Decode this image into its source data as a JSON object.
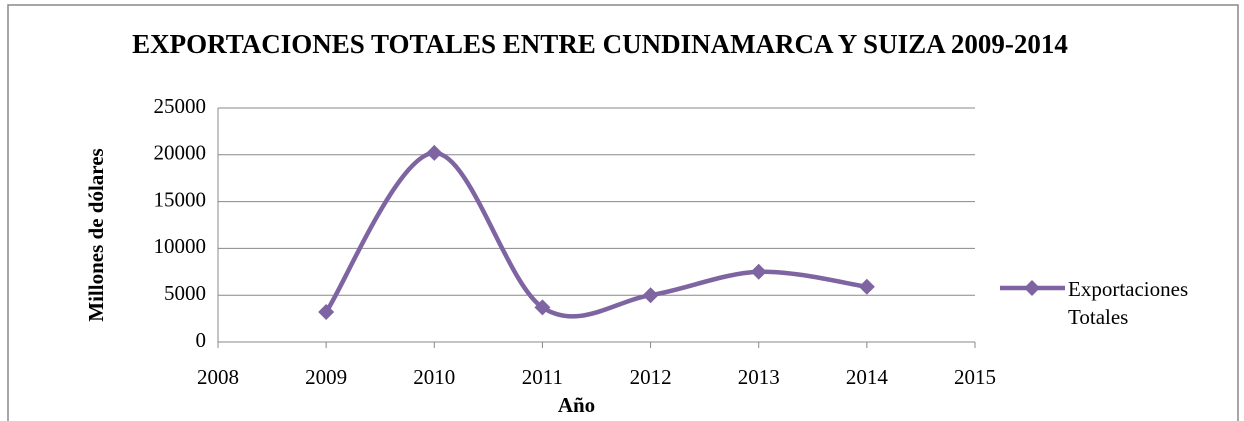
{
  "chart_data": {
    "type": "line",
    "title": "EXPORTACIONES TOTALES ENTRE CUNDINAMARCA Y SUIZA 2009-2014",
    "x_label": "Año",
    "y_label": "Millones de dólares",
    "x": [
      2009,
      2010,
      2011,
      2012,
      2013,
      2014
    ],
    "series": [
      {
        "name": "Exportaciones Totales",
        "color": "#7f64a2",
        "values": [
          3200,
          20200,
          3700,
          5000,
          7500,
          5900
        ]
      }
    ],
    "xlim": [
      2008,
      2015
    ],
    "xticks": [
      2008,
      2009,
      2010,
      2011,
      2012,
      2013,
      2014,
      2015
    ],
    "ylim": [
      0,
      25000
    ],
    "yticks": [
      0,
      5000,
      10000,
      15000,
      20000,
      25000
    ],
    "grid": true,
    "smooth": true,
    "legend": "right"
  }
}
